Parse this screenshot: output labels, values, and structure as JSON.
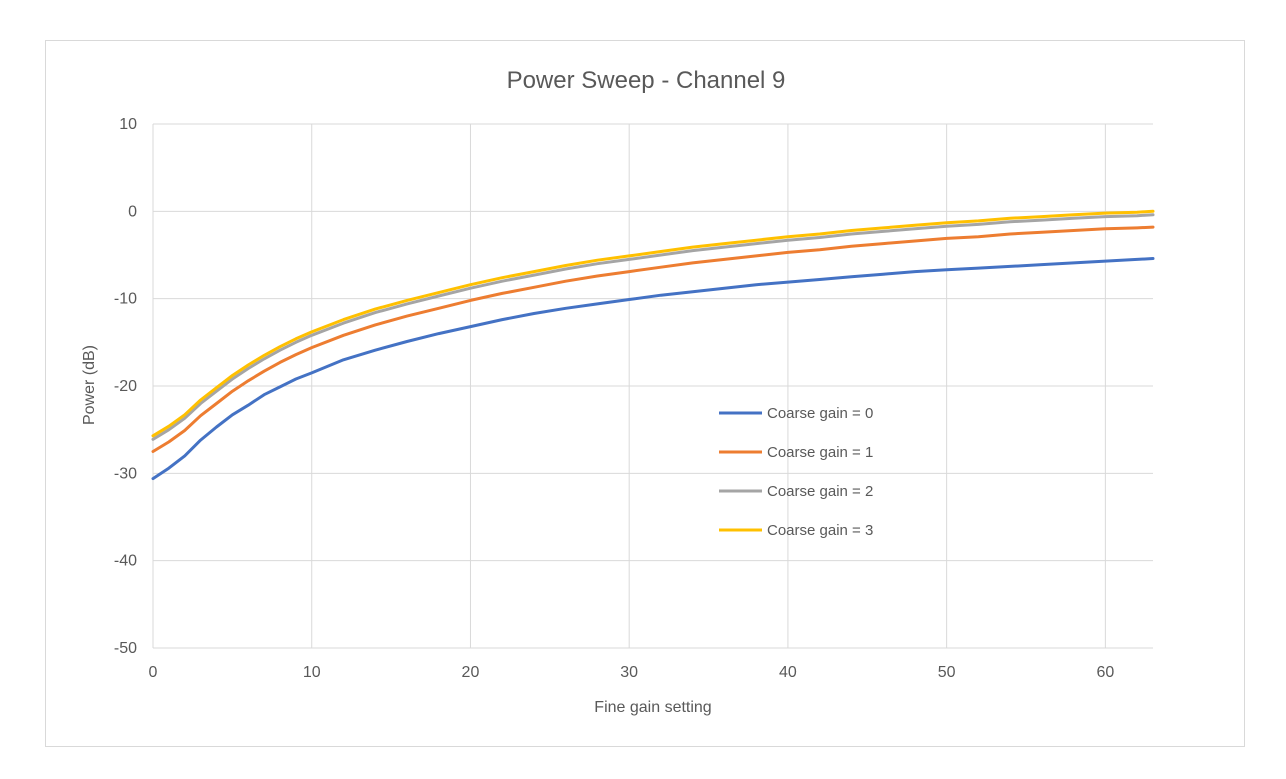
{
  "chart_data": {
    "type": "line",
    "title": "Power Sweep - Channel 9",
    "xlabel": "Fine gain setting",
    "ylabel": "Power (dB)",
    "xlim": [
      0,
      63
    ],
    "ylim": [
      -50,
      10
    ],
    "xticks": [
      0,
      10,
      20,
      30,
      40,
      50,
      60
    ],
    "yticks": [
      10,
      0,
      -10,
      -20,
      -30,
      -40,
      -50
    ],
    "grid": true,
    "legend_position": "center-right",
    "x": [
      0,
      1,
      2,
      3,
      4,
      5,
      6,
      7,
      8,
      9,
      10,
      12,
      14,
      16,
      18,
      20,
      22,
      24,
      26,
      28,
      30,
      32,
      34,
      36,
      38,
      40,
      42,
      44,
      46,
      48,
      50,
      52,
      54,
      56,
      58,
      60,
      62,
      63
    ],
    "series": [
      {
        "name": "Coarse gain = 0",
        "color": "#4472c4",
        "values": [
          -30.6,
          -29.4,
          -28.0,
          -26.2,
          -24.7,
          -23.3,
          -22.2,
          -21.0,
          -20.1,
          -19.2,
          -18.5,
          -17.0,
          -15.9,
          -14.9,
          -14.0,
          -13.2,
          -12.4,
          -11.7,
          -11.1,
          -10.6,
          -10.1,
          -9.6,
          -9.2,
          -8.8,
          -8.4,
          -8.1,
          -7.8,
          -7.5,
          -7.2,
          -6.9,
          -6.7,
          -6.5,
          -6.3,
          -6.1,
          -5.9,
          -5.7,
          -5.5,
          -5.4
        ]
      },
      {
        "name": "Coarse gain = 1",
        "color": "#ed7d31",
        "values": [
          -27.5,
          -26.4,
          -25.1,
          -23.4,
          -22.0,
          -20.6,
          -19.4,
          -18.3,
          -17.3,
          -16.4,
          -15.6,
          -14.2,
          -13.0,
          -12.0,
          -11.1,
          -10.2,
          -9.4,
          -8.7,
          -8.0,
          -7.4,
          -6.9,
          -6.4,
          -5.9,
          -5.5,
          -5.1,
          -4.7,
          -4.4,
          -4.0,
          -3.7,
          -3.4,
          -3.1,
          -2.9,
          -2.6,
          -2.4,
          -2.2,
          -2.0,
          -1.9,
          -1.8
        ]
      },
      {
        "name": "Coarse gain = 2",
        "color": "#a5a5a5",
        "values": [
          -26.1,
          -25.0,
          -23.7,
          -22.0,
          -20.6,
          -19.2,
          -18.0,
          -16.9,
          -15.9,
          -15.0,
          -14.2,
          -12.8,
          -11.6,
          -10.6,
          -9.7,
          -8.8,
          -8.0,
          -7.3,
          -6.6,
          -6.0,
          -5.5,
          -5.0,
          -4.5,
          -4.1,
          -3.7,
          -3.3,
          -3.0,
          -2.6,
          -2.3,
          -2.0,
          -1.7,
          -1.5,
          -1.2,
          -1.0,
          -0.8,
          -0.6,
          -0.5,
          -0.4
        ]
      },
      {
        "name": "Coarse gain = 3",
        "color": "#ffc000",
        "values": [
          -25.7,
          -24.6,
          -23.3,
          -21.6,
          -20.2,
          -18.8,
          -17.6,
          -16.5,
          -15.5,
          -14.6,
          -13.8,
          -12.4,
          -11.2,
          -10.2,
          -9.3,
          -8.4,
          -7.6,
          -6.9,
          -6.2,
          -5.6,
          -5.1,
          -4.6,
          -4.1,
          -3.7,
          -3.3,
          -2.9,
          -2.6,
          -2.2,
          -1.9,
          -1.6,
          -1.3,
          -1.1,
          -0.8,
          -0.6,
          -0.4,
          -0.2,
          -0.1,
          0.0
        ]
      }
    ]
  }
}
